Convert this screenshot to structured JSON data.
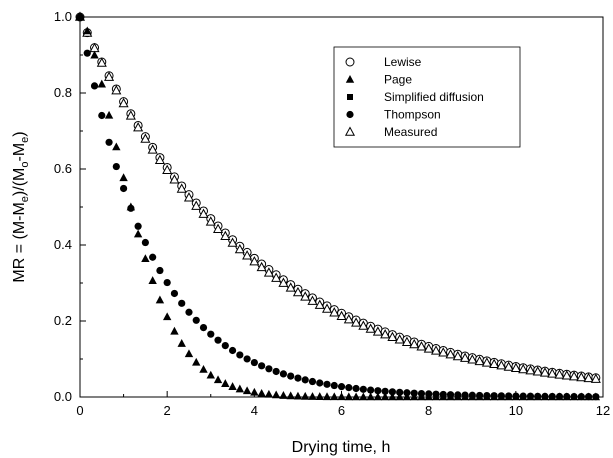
{
  "chart_data": {
    "type": "scatter",
    "title": "",
    "xlabel": "Drying time, h",
    "ylabel": {
      "prefix": "MR = (M-M",
      "sub1": "e",
      "mid": ")/(M",
      "sub2": "o",
      "mid2": "-M",
      "sub3": "e",
      "suffix": ")"
    },
    "xlim": [
      0,
      12
    ],
    "ylim": [
      0,
      1.0
    ],
    "xticks": [
      "0",
      "2",
      "4",
      "6",
      "8",
      "10",
      "12"
    ],
    "yticks": [
      "0.0",
      "0.2",
      "0.4",
      "0.6",
      "0.8",
      "1.0"
    ],
    "grid": false,
    "legend_position": "top-right",
    "x_step": 0.1667,
    "series": [
      {
        "name": "Lewise",
        "marker": "open-circle",
        "model": {
          "form": "exp",
          "k": 0.252
        }
      },
      {
        "name": "Page",
        "marker": "filled-triangle",
        "model": {
          "form": "page",
          "k": 0.55,
          "n": 1.5
        }
      },
      {
        "name": "Simplified diffusion",
        "marker": "filled-square",
        "model": {
          "form": "exp",
          "k": 0.252
        }
      },
      {
        "name": "Thompson",
        "marker": "filled-circle",
        "model": {
          "form": "exp",
          "k": 0.6
        }
      },
      {
        "name": "Measured",
        "marker": "open-triangle",
        "model": {
          "form": "exp",
          "k": 0.258
        }
      }
    ]
  }
}
